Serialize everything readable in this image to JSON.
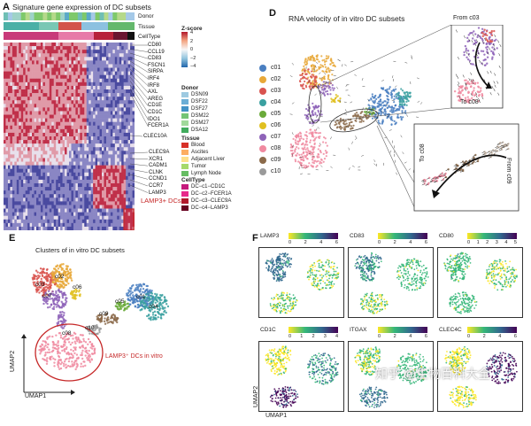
{
  "panel_a": {
    "letter": "A",
    "title": "Signature gene expression of DC subsets",
    "bar_labels": [
      "Donor",
      "Tissue",
      "CellType"
    ],
    "genes_top": [
      "CD80",
      "CCL19",
      "CD83",
      "FSCN1",
      "SIRPA",
      "IRF4",
      "IRF8",
      "AXL",
      "AREG",
      "CD1E",
      "CD1C",
      "IDO1",
      "FCER1A"
    ],
    "genes_mid": [
      "CLEC10A"
    ],
    "genes_bot": [
      "CLEC9A",
      "XCR1",
      "CADM1",
      "CLNK",
      "CCND1",
      "CCR7",
      "LAMP3"
    ],
    "lamp3_label": "LAMP3+ DCs",
    "zscore": {
      "title": "Z-score",
      "ticks": [
        "4",
        "2",
        "0",
        "−2",
        "−4"
      ]
    },
    "donor": {
      "title": "Donor",
      "items": [
        "DSN09",
        "DSF22",
        "DSF27",
        "DSM22",
        "DSM27",
        "DSA12"
      ],
      "colors": [
        "#9ecae1",
        "#6baed6",
        "#4292c6",
        "#74c476",
        "#a1d99b",
        "#41ab5d"
      ]
    },
    "tissue": {
      "title": "Tissue",
      "items": [
        "Blood",
        "Ascites",
        "Adjacent Liver",
        "Tumor",
        "Lymph Node"
      ],
      "colors": [
        "#d73027",
        "#fdae61",
        "#fee08b",
        "#a6d96a",
        "#66bd63"
      ]
    },
    "celltype": {
      "title": "CellType",
      "items": [
        "DC−c1−CD1C",
        "DC−c2−FCER1A",
        "DC−c3−CLEC9A",
        "DC−c4−LAMP3"
      ],
      "colors": [
        "#c51b7d",
        "#e7298a",
        "#b2182b",
        "#67001f"
      ]
    }
  },
  "panel_d": {
    "letter": "D",
    "title": "RNA velocity of in vitro DC subsets",
    "clusters": [
      {
        "id": "c01",
        "color": "#4a7fc1"
      },
      {
        "id": "c02",
        "color": "#e8a838"
      },
      {
        "id": "c03",
        "color": "#d9534f"
      },
      {
        "id": "c04",
        "color": "#3aa0a0"
      },
      {
        "id": "c05",
        "color": "#6aaa3a"
      },
      {
        "id": "c06",
        "color": "#e0c020"
      },
      {
        "id": "c07",
        "color": "#8e63b8"
      },
      {
        "id": "c08",
        "color": "#f08aa0"
      },
      {
        "id": "c09",
        "color": "#8b6a4a"
      },
      {
        "id": "c10",
        "color": "#9a9a9a"
      }
    ],
    "from_c03": "From c03",
    "to_c08_a": "To c08",
    "to_c08_b": "To c08",
    "from_c09": "From c09"
  },
  "panel_e": {
    "letter": "E",
    "title": "Clusters of in vitro DC subsets",
    "labels": [
      "c03",
      "c02",
      "c07",
      "c06",
      "c05",
      "c01",
      "c04",
      "c09",
      "c10",
      "c08"
    ],
    "annotation": "LAMP3⁺ DCs in vitro",
    "xaxis": "UMAP1",
    "yaxis": "UMAP2"
  },
  "panel_f": {
    "letter": "F",
    "genes": [
      {
        "name": "LAMP3",
        "ticks": [
          "0",
          "2",
          "4",
          "6"
        ]
      },
      {
        "name": "CD83",
        "ticks": [
          "0",
          "2",
          "4",
          "6"
        ]
      },
      {
        "name": "CD80",
        "ticks": [
          "0",
          "1",
          "2",
          "3",
          "4",
          "5"
        ]
      },
      {
        "name": "CD1C",
        "ticks": [
          "0",
          "1",
          "2",
          "3",
          "4"
        ]
      },
      {
        "name": "ITGAX",
        "ticks": [
          "0",
          "2",
          "4",
          "6"
        ]
      },
      {
        "name": "CLEC4C",
        "ticks": [
          "0",
          "2",
          "4",
          "6"
        ]
      }
    ],
    "xaxis": "UMAP1",
    "yaxis": "UMAP2"
  },
  "watermark": "知乎 @生物百科大全"
}
